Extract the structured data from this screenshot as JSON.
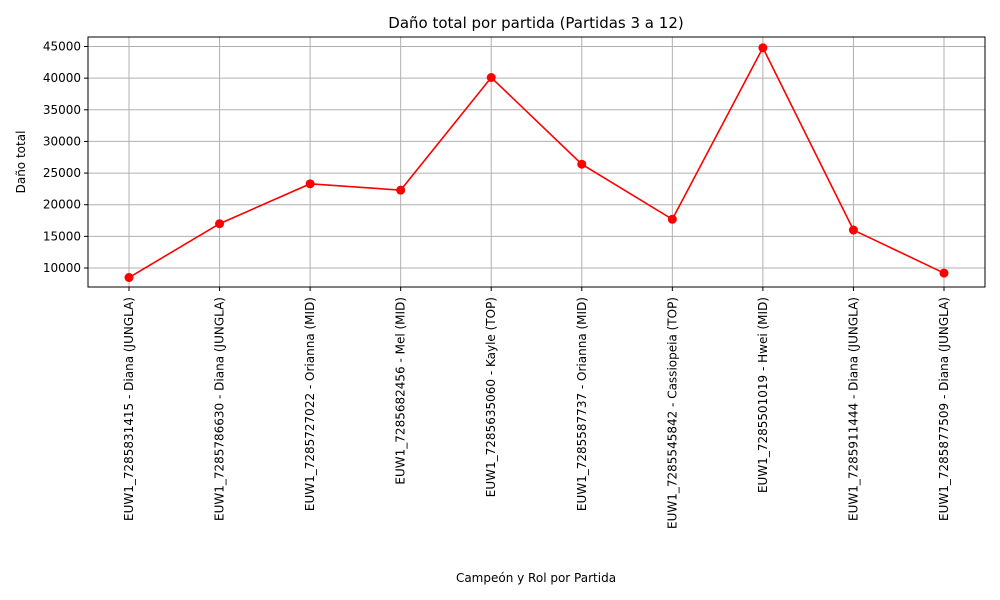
{
  "chart_data": {
    "type": "line",
    "title": "Daño total por partida (Partidas 3 a 12)",
    "xlabel": "Campeón y Rol por Partida",
    "ylabel": "Daño total",
    "ylim": [
      7000,
      46500
    ],
    "yticks": [
      10000,
      15000,
      20000,
      25000,
      30000,
      35000,
      40000,
      45000
    ],
    "ytick_labels": [
      "10000",
      "15000",
      "20000",
      "25000",
      "30000",
      "35000",
      "40000",
      "45000"
    ],
    "grid": true,
    "legend": "none",
    "categories": [
      "EUW1_7285831415 - Diana (JUNGLA)",
      "EUW1_7285786630 - Diana (JUNGLA)",
      "EUW1_7285727022 - Orianna (MID)",
      "EUW1_7285682456 - Mel (MID)",
      "EUW1_7285635060 - Kayle (TOP)",
      "EUW1_7285587737 - Orianna (MID)",
      "EUW1_7285545842 - Cassiopeia (TOP)",
      "EUW1_7285501019 - Hwei (MID)",
      "EUW1_7285911444 - Diana (JUNGLA)",
      "EUW1_7285877509 - Diana (JUNGLA)"
    ],
    "series": [
      {
        "values": [
          8500,
          17000,
          23300,
          22300,
          40100,
          26400,
          17700,
          44800,
          16000,
          9200
        ],
        "color": "#ff0000",
        "marker": "circle"
      }
    ],
    "colors": {
      "grid": "#b0b0b0",
      "axes": "#000000",
      "line": "#ff0000"
    }
  }
}
